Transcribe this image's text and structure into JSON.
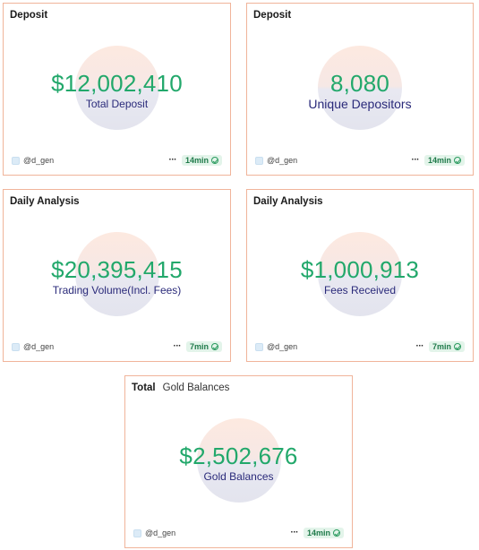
{
  "cards": [
    {
      "title": "Deposit",
      "subtitle": "",
      "value": "$12,002,410",
      "label": "Total Deposit",
      "author": "@d_gen",
      "age": "14min"
    },
    {
      "title": "Deposit",
      "subtitle": "",
      "value": "8,080",
      "label": "Unique Depositors",
      "author": "@d_gen",
      "age": "14min"
    },
    {
      "title": "Daily Analysis",
      "subtitle": "",
      "value": "$20,395,415",
      "label": "Trading Volume(Incl. Fees)",
      "author": "@d_gen",
      "age": "7min"
    },
    {
      "title": "Daily Analysis",
      "subtitle": "",
      "value": "$1,000,913",
      "label": "Fees Received",
      "author": "@d_gen",
      "age": "7min"
    },
    {
      "title": "Total",
      "subtitle": "Gold Balances",
      "value": "$2,502,676",
      "label": "Gold Balances",
      "author": "@d_gen",
      "age": "14min"
    }
  ],
  "colors": {
    "value": "#22a86b",
    "label": "#2a2a7a",
    "border": "#f0b49a",
    "badge_bg": "#e3f4ea"
  },
  "icons": {
    "more": "more-horizontal-icon",
    "status": "check-circle-icon",
    "avatar": "user-avatar-icon"
  }
}
